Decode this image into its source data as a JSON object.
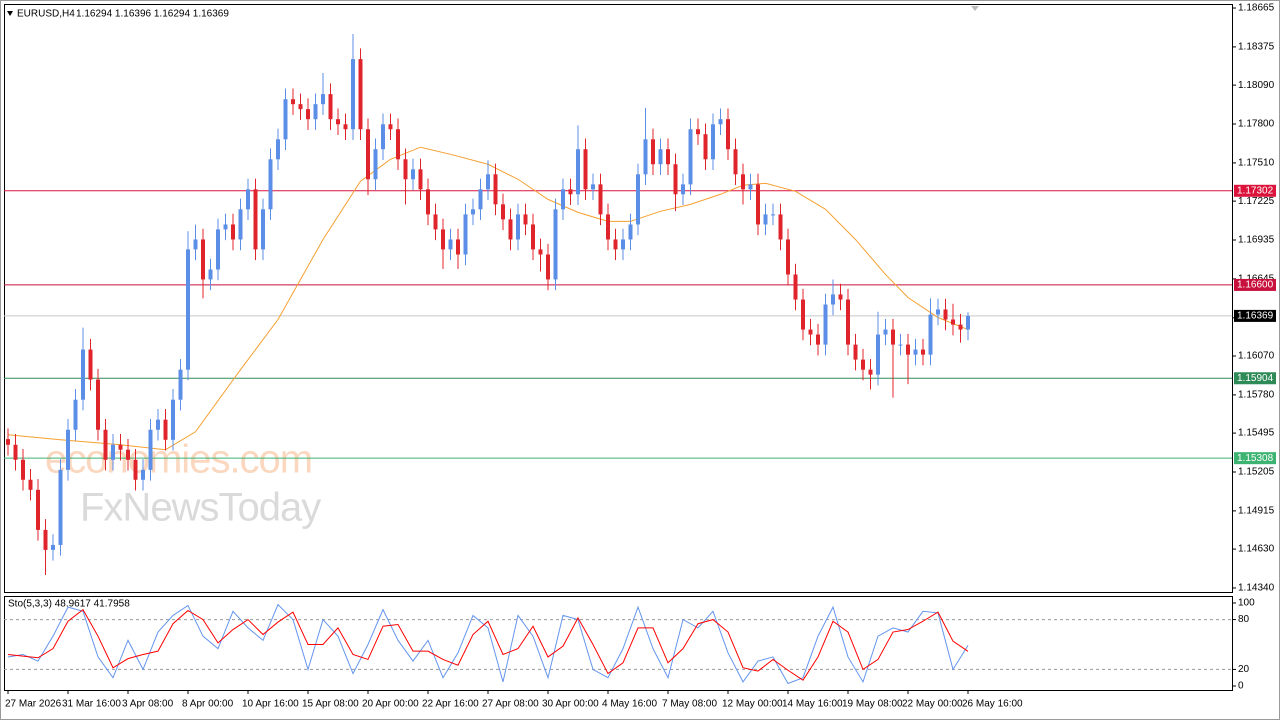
{
  "chart_data": [
    {
      "type": "candlestick",
      "title": "EURUSD,H4",
      "quote": "1.16294 1.16396 1.16294 1.16369",
      "categories": [
        "27 Mar 2026",
        null,
        null,
        null,
        null,
        null,
        null,
        null,
        "31 Mar 16:00",
        null,
        null,
        null,
        null,
        null,
        null,
        null,
        "3 Apr 08:00",
        null,
        null,
        null,
        null,
        null,
        null,
        null,
        "8 Apr 00:00",
        null,
        null,
        null,
        null,
        null,
        null,
        null,
        "10 Apr 16:00",
        null,
        null,
        null,
        null,
        null,
        null,
        null,
        "15 Apr 08:00",
        null,
        null,
        null,
        null,
        null,
        null,
        null,
        "20 Apr 00:00",
        null,
        null,
        null,
        null,
        null,
        null,
        null,
        "22 Apr 16:00",
        null,
        null,
        null,
        null,
        null,
        null,
        null,
        "27 Apr 08:00",
        null,
        null,
        null,
        null,
        null,
        null,
        null,
        "30 Apr 00:00",
        null,
        null,
        null,
        null,
        null,
        null,
        null,
        "4 May 16:00",
        null,
        null,
        null,
        null,
        null,
        null,
        null,
        "7 May 08:00",
        null,
        null,
        null,
        null,
        null,
        null,
        null,
        "12 May 00:00",
        null,
        null,
        null,
        null,
        null,
        null,
        null,
        "14 May 16:00",
        null,
        null,
        null,
        null,
        null,
        null,
        null,
        "19 May 08:00",
        null,
        null,
        null,
        null,
        null,
        null,
        null,
        "22 May 00:00",
        null,
        null,
        null,
        null,
        null,
        null,
        null,
        "26 May 16:00"
      ],
      "open": [
        1.1545,
        1.15408,
        1.15296,
        1.15147,
        1.15072,
        1.14773,
        1.14624,
        1.14661,
        1.15221,
        1.1552,
        1.15744,
        1.16118,
        1.15894,
        1.1552,
        1.15296,
        1.15408,
        1.15371,
        1.15296,
        1.15147,
        1.15221,
        1.1552,
        1.15595,
        1.15445,
        1.15744,
        1.15968,
        1.16865,
        1.16939,
        1.16641,
        1.16715,
        1.17014,
        1.17051,
        1.16939,
        1.17164,
        1.17313,
        1.16865,
        1.17164,
        1.17537,
        1.17686,
        1.17985,
        1.17948,
        1.17911,
        1.17836,
        1.17948,
        1.18023,
        1.17836,
        1.17798,
        1.17761,
        1.18284,
        1.17761,
        1.17388,
        1.17612,
        1.17798,
        1.17761,
        1.17537,
        1.17388,
        1.17462,
        1.17313,
        1.17126,
        1.17014,
        1.16865,
        1.16939,
        1.16827,
        1.17126,
        1.17164,
        1.17313,
        1.17425,
        1.17201,
        1.17089,
        1.16939,
        1.17126,
        1.17051,
        1.16865,
        1.16827,
        1.16641,
        1.17164,
        1.17313,
        1.17276,
        1.17612,
        1.17313,
        1.1735,
        1.17126,
        1.16939,
        1.16865,
        1.16939,
        1.17051,
        1.17425,
        1.17686,
        1.175,
        1.17612,
        1.175,
        1.17276,
        1.1735,
        1.17761,
        1.17724,
        1.17537,
        1.17798,
        1.17836,
        1.17612,
        1.17425,
        1.17313,
        1.1735,
        1.17051,
        1.17126,
        1.17126,
        1.16939,
        1.16678,
        1.16491,
        1.16267,
        1.1623,
        1.16155,
        1.16454,
        1.16529,
        1.16491,
        1.16155,
        1.16043,
        1.15968,
        1.15931,
        1.1623,
        1.16267,
        1.16155,
        1.16155,
        1.1608,
        1.16118,
        1.1608,
        1.16379,
        1.16417,
        1.16342,
        1.16304,
        1.16267
      ],
      "high": [
        1.1553,
        1.15488,
        1.15376,
        1.15227,
        1.15152,
        1.14853,
        1.14741,
        1.15301,
        1.156,
        1.15824,
        1.16282,
        1.16198,
        1.15974,
        1.156,
        1.15488,
        1.15488,
        1.15451,
        1.15376,
        1.15301,
        1.156,
        1.15675,
        1.15675,
        1.15824,
        1.16048,
        1.17,
        1.1705,
        1.17019,
        1.16795,
        1.17094,
        1.17131,
        1.17131,
        1.17244,
        1.17393,
        1.17393,
        1.17244,
        1.17617,
        1.17766,
        1.18065,
        1.18065,
        1.18028,
        1.17991,
        1.18028,
        1.1818,
        1.18103,
        1.17916,
        1.17878,
        1.18471,
        1.18364,
        1.17841,
        1.17692,
        1.17878,
        1.17878,
        1.17841,
        1.17617,
        1.17542,
        1.17542,
        1.17393,
        1.17206,
        1.17094,
        1.17019,
        1.17019,
        1.17206,
        1.17244,
        1.17393,
        1.1753,
        1.17505,
        1.17281,
        1.17169,
        1.17206,
        1.17206,
        1.17131,
        1.16945,
        1.16907,
        1.17244,
        1.17393,
        1.17393,
        1.1779,
        1.17692,
        1.1743,
        1.1743,
        1.17206,
        1.17019,
        1.17019,
        1.17131,
        1.17505,
        1.1792,
        1.17766,
        1.17692,
        1.17692,
        1.1758,
        1.1743,
        1.17841,
        1.17841,
        1.17804,
        1.17878,
        1.17916,
        1.17916,
        1.17692,
        1.17505,
        1.1743,
        1.1743,
        1.17206,
        1.17206,
        1.17206,
        1.17019,
        1.16758,
        1.16571,
        1.16347,
        1.1631,
        1.16534,
        1.1664,
        1.16609,
        1.16571,
        1.16235,
        1.16123,
        1.16048,
        1.164,
        1.16347,
        1.16347,
        1.16235,
        1.16235,
        1.16198,
        1.16198,
        1.165,
        1.16497,
        1.16497,
        1.1646,
        1.16384,
        1.16396
      ],
      "low": [
        1.15328,
        1.15216,
        1.15067,
        1.14992,
        1.14693,
        1.14437,
        1.14544,
        1.14581,
        1.15141,
        1.1544,
        1.15664,
        1.15814,
        1.1544,
        1.15216,
        1.15216,
        1.15291,
        1.15216,
        1.15067,
        1.15067,
        1.15141,
        1.1544,
        1.15365,
        1.15365,
        1.15664,
        1.15888,
        1.16785,
        1.165,
        1.16561,
        1.16635,
        1.16934,
        1.16859,
        1.16859,
        1.17084,
        1.16785,
        1.16785,
        1.17084,
        1.17457,
        1.17606,
        1.17868,
        1.17831,
        1.17756,
        1.17756,
        1.17868,
        1.17756,
        1.17718,
        1.17681,
        1.17681,
        1.17681,
        1.1727,
        1.17308,
        1.17532,
        1.17681,
        1.17457,
        1.172,
        1.17308,
        1.17233,
        1.17046,
        1.16934,
        1.1672,
        1.16785,
        1.1672,
        1.16747,
        1.17046,
        1.17084,
        1.17233,
        1.17121,
        1.17009,
        1.16859,
        1.16859,
        1.16971,
        1.16785,
        1.167,
        1.1656,
        1.16561,
        1.17084,
        1.17196,
        1.17196,
        1.17233,
        1.17233,
        1.17046,
        1.16859,
        1.16785,
        1.16785,
        1.16859,
        1.16971,
        1.17345,
        1.1742,
        1.1742,
        1.1742,
        1.1715,
        1.17196,
        1.1727,
        1.17644,
        1.17457,
        1.17457,
        1.17718,
        1.17532,
        1.17345,
        1.172,
        1.17233,
        1.16971,
        1.16971,
        1.17046,
        1.16859,
        1.16598,
        1.16411,
        1.16187,
        1.1615,
        1.16075,
        1.16075,
        1.16374,
        1.16411,
        1.16075,
        1.15963,
        1.15888,
        1.1582,
        1.15851,
        1.1615,
        1.1576,
        1.16075,
        1.1586,
        1.16,
        1.16,
        1.16,
        1.16299,
        1.16262,
        1.16224,
        1.1617,
        1.16187
      ],
      "close": [
        1.15408,
        1.15296,
        1.15147,
        1.15072,
        1.14773,
        1.14624,
        1.14661,
        1.15221,
        1.1552,
        1.15744,
        1.16118,
        1.15894,
        1.1552,
        1.15296,
        1.15408,
        1.15371,
        1.15296,
        1.15147,
        1.15221,
        1.1552,
        1.15595,
        1.15445,
        1.15744,
        1.15968,
        1.16865,
        1.16939,
        1.16641,
        1.16715,
        1.17014,
        1.17051,
        1.16939,
        1.17164,
        1.17313,
        1.16865,
        1.17164,
        1.17537,
        1.17686,
        1.17985,
        1.17948,
        1.17911,
        1.17836,
        1.17948,
        1.18023,
        1.17836,
        1.17798,
        1.17761,
        1.18284,
        1.17761,
        1.17388,
        1.17612,
        1.17798,
        1.17761,
        1.17537,
        1.17388,
        1.17462,
        1.17313,
        1.17126,
        1.17014,
        1.16865,
        1.16939,
        1.16827,
        1.17126,
        1.17164,
        1.17313,
        1.17425,
        1.17201,
        1.17089,
        1.16939,
        1.17126,
        1.17051,
        1.16865,
        1.16827,
        1.16641,
        1.17164,
        1.17313,
        1.17276,
        1.17612,
        1.17313,
        1.1735,
        1.17126,
        1.16939,
        1.16865,
        1.16939,
        1.17051,
        1.17425,
        1.17686,
        1.175,
        1.17612,
        1.175,
        1.17276,
        1.1735,
        1.17761,
        1.17724,
        1.17537,
        1.17798,
        1.17836,
        1.17612,
        1.17425,
        1.17313,
        1.1735,
        1.17051,
        1.17126,
        1.17126,
        1.16939,
        1.16678,
        1.16491,
        1.16267,
        1.1623,
        1.16155,
        1.16454,
        1.16529,
        1.16491,
        1.16155,
        1.16043,
        1.15968,
        1.15931,
        1.1623,
        1.16267,
        1.16155,
        1.16155,
        1.1608,
        1.16118,
        1.1608,
        1.16379,
        1.16417,
        1.16342,
        1.16304,
        1.16267,
        1.16369
      ],
      "up_color": "#5b8ee6",
      "down_color": "#e0242c",
      "ma": {
        "color": "#f5a031",
        "x": [
          0,
          7,
          15,
          21,
          25,
          31,
          36,
          42,
          47,
          51,
          55,
          59,
          64,
          68,
          72,
          76,
          80,
          83,
          87,
          91,
          95,
          98,
          101,
          105,
          109,
          113,
          117,
          120,
          124,
          128
        ],
        "values": [
          1.15483,
          1.15445,
          1.15408,
          1.15371,
          1.15505,
          1.15968,
          1.16342,
          1.16939,
          1.17373,
          1.17537,
          1.17627,
          1.17574,
          1.175,
          1.17388,
          1.17238,
          1.17141,
          1.17074,
          1.17074,
          1.17149,
          1.17201,
          1.17276,
          1.17343,
          1.17358,
          1.17298,
          1.17164,
          1.16939,
          1.16678,
          1.16506,
          1.16357,
          1.16267
        ]
      },
      "ylim": [
        1.1431,
        1.18695
      ],
      "yticks": [
        1.18665,
        1.18375,
        {
          "value": 1.1809,
          "label": "1.18090"
        },
        {
          "value": 1.178,
          "label": "1.17800"
        },
        {
          "value": 1.1751,
          "label": "1.17510"
        },
        1.17225,
        1.16935,
        1.16645,
        1.16355,
        {
          "value": 1.1607,
          "label": "1.16070"
        },
        {
          "value": 1.1578,
          "label": "1.15780"
        },
        1.15495,
        1.15205,
        1.14915,
        {
          "value": 1.1463,
          "label": "1.14630"
        },
        {
          "value": 1.1434,
          "label": "1.14340"
        }
      ],
      "levels": [
        {
          "value": 1.17302,
          "color": "#dc143c"
        },
        {
          "value": 1.166,
          "label": "1.16600",
          "color": "#c8103c"
        },
        {
          "value": 1.15904,
          "color": "#2e8b57"
        },
        {
          "value": 1.15308,
          "color": "#3cb371"
        }
      ],
      "last_price": {
        "value": 1.16369,
        "color": "#000000",
        "line_color": "#c8c8c8"
      },
      "watermarks": [
        "economies.com",
        "FxNewsToday"
      ]
    },
    {
      "type": "line",
      "title": "Sto(5,3,3) 48.9617 41.7958",
      "x": [
        0,
        2,
        4,
        6,
        8,
        10,
        12,
        14,
        16,
        18,
        20,
        22,
        24,
        26,
        28,
        30,
        32,
        34,
        36,
        38,
        40,
        42,
        44,
        46,
        48,
        50,
        52,
        54,
        56,
        58,
        60,
        62,
        64,
        66,
        68,
        70,
        72,
        74,
        76,
        78,
        80,
        82,
        84,
        86,
        88,
        90,
        92,
        94,
        96,
        98,
        100,
        102,
        104,
        106,
        108,
        110,
        112,
        114,
        116,
        118,
        120,
        122,
        124,
        126,
        128
      ],
      "series": [
        {
          "color": "#6495ed",
          "values": [
            35,
            38,
            30,
            60,
            95,
            90,
            35,
            10,
            55,
            20,
            65,
            85,
            97,
            60,
            45,
            90,
            70,
            55,
            98,
            80,
            20,
            80,
            60,
            15,
            50,
            92,
            55,
            30,
            55,
            10,
            40,
            85,
            70,
            5,
            85,
            60,
            10,
            85,
            80,
            20,
            10,
            45,
            95,
            45,
            10,
            80,
            70,
            90,
            40,
            5,
            30,
            35,
            3,
            10,
            60,
            95,
            35,
            5,
            60,
            70,
            65,
            90,
            88,
            20,
            48.9617
          ]
        },
        {
          "color": "#ff0000",
          "values": [
            38,
            36,
            34,
            45,
            78,
            92,
            60,
            22,
            33,
            38,
            42,
            75,
            91,
            80,
            52,
            68,
            80,
            62,
            77,
            89,
            50,
            50,
            70,
            38,
            32,
            72,
            74,
            42,
            42,
            32,
            25,
            62,
            78,
            38,
            45,
            72,
            35,
            48,
            82,
            50,
            15,
            28,
            70,
            70,
            28,
            45,
            75,
            80,
            65,
            22,
            18,
            32,
            19,
            7,
            35,
            78,
            65,
            20,
            32,
            65,
            68,
            78,
            89,
            54,
            41.7958
          ]
        }
      ],
      "ylim": [
        -4.8,
        108.4
      ],
      "yticks": [
        100,
        80,
        20,
        0
      ],
      "levels": [
        80,
        20
      ]
    }
  ]
}
